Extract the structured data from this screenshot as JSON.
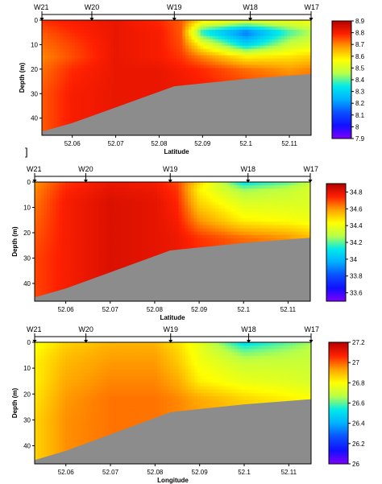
{
  "colors": {
    "seabed": "#8c8c8c",
    "colormap": [
      "#7f00ff",
      "#1010ff",
      "#0a50ff",
      "#00b0ff",
      "#00eaea",
      "#b8ff48",
      "#ffff00",
      "#ffa000",
      "#ff2000",
      "#b40000"
    ]
  },
  "stray_mark": "]",
  "chart_data": [
    {
      "type": "heatmap",
      "title": "",
      "xlabel": "Latitude",
      "ylabel": "Depth (m)",
      "xlim": [
        52.053,
        52.115
      ],
      "ylim": [
        47,
        0
      ],
      "x_ticks": [
        "52.06",
        "52.07",
        "52.08",
        "52.09",
        "52.1",
        "52.11"
      ],
      "x_tick_values": [
        52.06,
        52.07,
        52.08,
        52.09,
        52.1,
        52.11
      ],
      "y_ticks": [
        "0",
        "10",
        "20",
        "30",
        "40"
      ],
      "y_tick_values": [
        0,
        10,
        20,
        30,
        40
      ],
      "stations": [
        {
          "name": "W21",
          "lat": 52.053
        },
        {
          "name": "W20",
          "lat": 52.0645
        },
        {
          "name": "W19",
          "lat": 52.0835
        },
        {
          "name": "W18",
          "lat": 52.101
        },
        {
          "name": "W17",
          "lat": 52.115
        }
      ],
      "colorbar": {
        "min": 7.9,
        "max": 8.9,
        "ticks": [
          "7.9",
          "8",
          "8.1",
          "8.2",
          "8.3",
          "8.4",
          "8.5",
          "8.6",
          "8.7",
          "8.8",
          "8.9"
        ],
        "tick_values": [
          7.9,
          8.0,
          8.1,
          8.2,
          8.3,
          8.4,
          8.5,
          8.6,
          8.7,
          8.8,
          8.9
        ]
      },
      "seabed": {
        "lat": [
          52.053,
          52.06,
          52.0835,
          52.1,
          52.115
        ],
        "depth": [
          45.5,
          42,
          27,
          24,
          22
        ]
      },
      "field": {
        "lat": [
          52.053,
          52.06,
          52.07,
          52.08,
          52.085,
          52.09,
          52.1,
          52.11,
          52.115
        ],
        "depth": [
          0,
          5,
          10,
          15,
          20,
          30,
          47
        ],
        "values": [
          [
            8.78,
            8.8,
            8.82,
            8.78,
            8.74,
            8.6,
            8.55,
            8.55,
            8.56
          ],
          [
            8.74,
            8.78,
            8.82,
            8.8,
            8.74,
            8.35,
            8.16,
            8.38,
            8.45
          ],
          [
            8.72,
            8.76,
            8.82,
            8.8,
            8.75,
            8.55,
            8.3,
            8.48,
            8.52
          ],
          [
            8.7,
            8.75,
            8.82,
            8.8,
            8.77,
            8.7,
            8.58,
            8.6,
            8.62
          ],
          [
            8.72,
            8.78,
            8.82,
            8.82,
            8.8,
            8.78,
            8.72,
            8.68,
            8.7
          ],
          [
            8.74,
            8.8,
            8.82,
            8.82,
            8.82,
            8.8,
            8.78,
            8.76,
            8.74
          ],
          [
            8.74,
            8.8,
            8.82,
            8.82,
            8.82,
            8.8,
            8.78,
            8.76,
            8.74
          ]
        ]
      }
    },
    {
      "type": "heatmap",
      "title": "",
      "xlabel": "Latitude",
      "ylabel": "Depth (m)",
      "xlim": [
        52.053,
        52.115
      ],
      "ylim": [
        47,
        0
      ],
      "x_ticks": [
        "52.06",
        "52.07",
        "52.08",
        "52.09",
        "52.1",
        "52.11"
      ],
      "x_tick_values": [
        52.06,
        52.07,
        52.08,
        52.09,
        52.1,
        52.11
      ],
      "y_ticks": [
        "0",
        "10",
        "20",
        "30",
        "40"
      ],
      "y_tick_values": [
        0,
        10,
        20,
        30,
        40
      ],
      "stations": [
        {
          "name": "W21",
          "lat": 52.053
        },
        {
          "name": "W20",
          "lat": 52.0645
        },
        {
          "name": "W19",
          "lat": 52.0835
        },
        {
          "name": "W18",
          "lat": 52.101
        },
        {
          "name": "W17",
          "lat": 52.115
        }
      ],
      "colorbar": {
        "min": 33.5,
        "max": 34.9,
        "ticks": [
          "33.6",
          "33.8",
          "34",
          "34.2",
          "34.4",
          "34.6",
          "34.8"
        ],
        "tick_values": [
          33.6,
          33.8,
          34.0,
          34.2,
          34.4,
          34.6,
          34.8
        ]
      },
      "seabed": {
        "lat": [
          52.053,
          52.06,
          52.0835,
          52.1,
          52.115
        ],
        "depth": [
          45.5,
          42,
          27,
          24,
          22
        ]
      },
      "field": {
        "lat": [
          52.053,
          52.06,
          52.07,
          52.08,
          52.085,
          52.09,
          52.1,
          52.11,
          52.115
        ],
        "depth": [
          0,
          3,
          8,
          15,
          22,
          30,
          47
        ],
        "values": [
          [
            34.6,
            34.72,
            34.78,
            34.76,
            34.7,
            34.5,
            34.1,
            34.2,
            34.3
          ],
          [
            34.62,
            34.74,
            34.8,
            34.78,
            34.72,
            34.45,
            34.25,
            34.3,
            34.35
          ],
          [
            34.64,
            34.76,
            34.82,
            34.8,
            34.74,
            34.5,
            34.35,
            34.35,
            34.35
          ],
          [
            34.66,
            34.76,
            34.82,
            34.8,
            34.76,
            34.6,
            34.45,
            34.42,
            34.4
          ],
          [
            34.68,
            34.76,
            34.82,
            34.8,
            34.78,
            34.72,
            34.65,
            34.6,
            34.55
          ],
          [
            34.7,
            34.76,
            34.82,
            34.8,
            34.78,
            34.74,
            34.7,
            34.66,
            34.62
          ],
          [
            34.7,
            34.76,
            34.82,
            34.8,
            34.78,
            34.74,
            34.7,
            34.66,
            34.62
          ]
        ]
      }
    },
    {
      "type": "heatmap",
      "title": "",
      "xlabel": "Longitude",
      "ylabel": "Depth (m)",
      "xlim": [
        52.053,
        52.115
      ],
      "ylim": [
        47,
        0
      ],
      "x_ticks": [
        "52.06",
        "52.07",
        "52.08",
        "52.09",
        "52.1",
        "52.11"
      ],
      "x_tick_values": [
        52.06,
        52.07,
        52.08,
        52.09,
        52.1,
        52.11
      ],
      "y_ticks": [
        "0",
        "10",
        "20",
        "30",
        "40"
      ],
      "y_tick_values": [
        0,
        10,
        20,
        30,
        40
      ],
      "stations": [
        {
          "name": "W21",
          "lat": 52.053
        },
        {
          "name": "W20",
          "lat": 52.0645
        },
        {
          "name": "W19",
          "lat": 52.0835
        },
        {
          "name": "W18",
          "lat": 52.101
        },
        {
          "name": "W17",
          "lat": 52.115
        }
      ],
      "colorbar": {
        "min": 26.0,
        "max": 27.2,
        "ticks": [
          "26",
          "26.2",
          "26.4",
          "26.6",
          "26.8",
          "27",
          "27.2"
        ],
        "tick_values": [
          26.0,
          26.2,
          26.4,
          26.6,
          26.8,
          27.0,
          27.2
        ]
      },
      "seabed": {
        "lat": [
          52.053,
          52.06,
          52.0835,
          52.1,
          52.115
        ],
        "depth": [
          45.5,
          42,
          27,
          24,
          22
        ]
      },
      "field": {
        "lat": [
          52.053,
          52.06,
          52.07,
          52.08,
          52.085,
          52.09,
          52.1,
          52.11,
          52.115
        ],
        "depth": [
          0,
          3,
          8,
          15,
          22,
          30,
          47
        ],
        "values": [
          [
            26.78,
            26.86,
            26.9,
            26.9,
            26.84,
            26.75,
            26.5,
            26.6,
            26.65
          ],
          [
            26.8,
            26.88,
            26.92,
            26.92,
            26.86,
            26.76,
            26.6,
            26.65,
            26.68
          ],
          [
            26.82,
            26.9,
            26.94,
            26.94,
            26.88,
            26.78,
            26.7,
            26.7,
            26.7
          ],
          [
            26.82,
            26.92,
            26.96,
            26.96,
            26.92,
            26.82,
            26.76,
            26.74,
            26.72
          ],
          [
            26.84,
            26.94,
            26.98,
            26.98,
            26.96,
            26.92,
            26.86,
            26.82,
            26.8
          ],
          [
            26.86,
            26.95,
            26.98,
            26.98,
            26.96,
            26.94,
            26.9,
            26.86,
            26.84
          ],
          [
            26.86,
            26.95,
            26.98,
            26.98,
            26.96,
            26.94,
            26.9,
            26.86,
            26.84
          ]
        ]
      }
    }
  ]
}
